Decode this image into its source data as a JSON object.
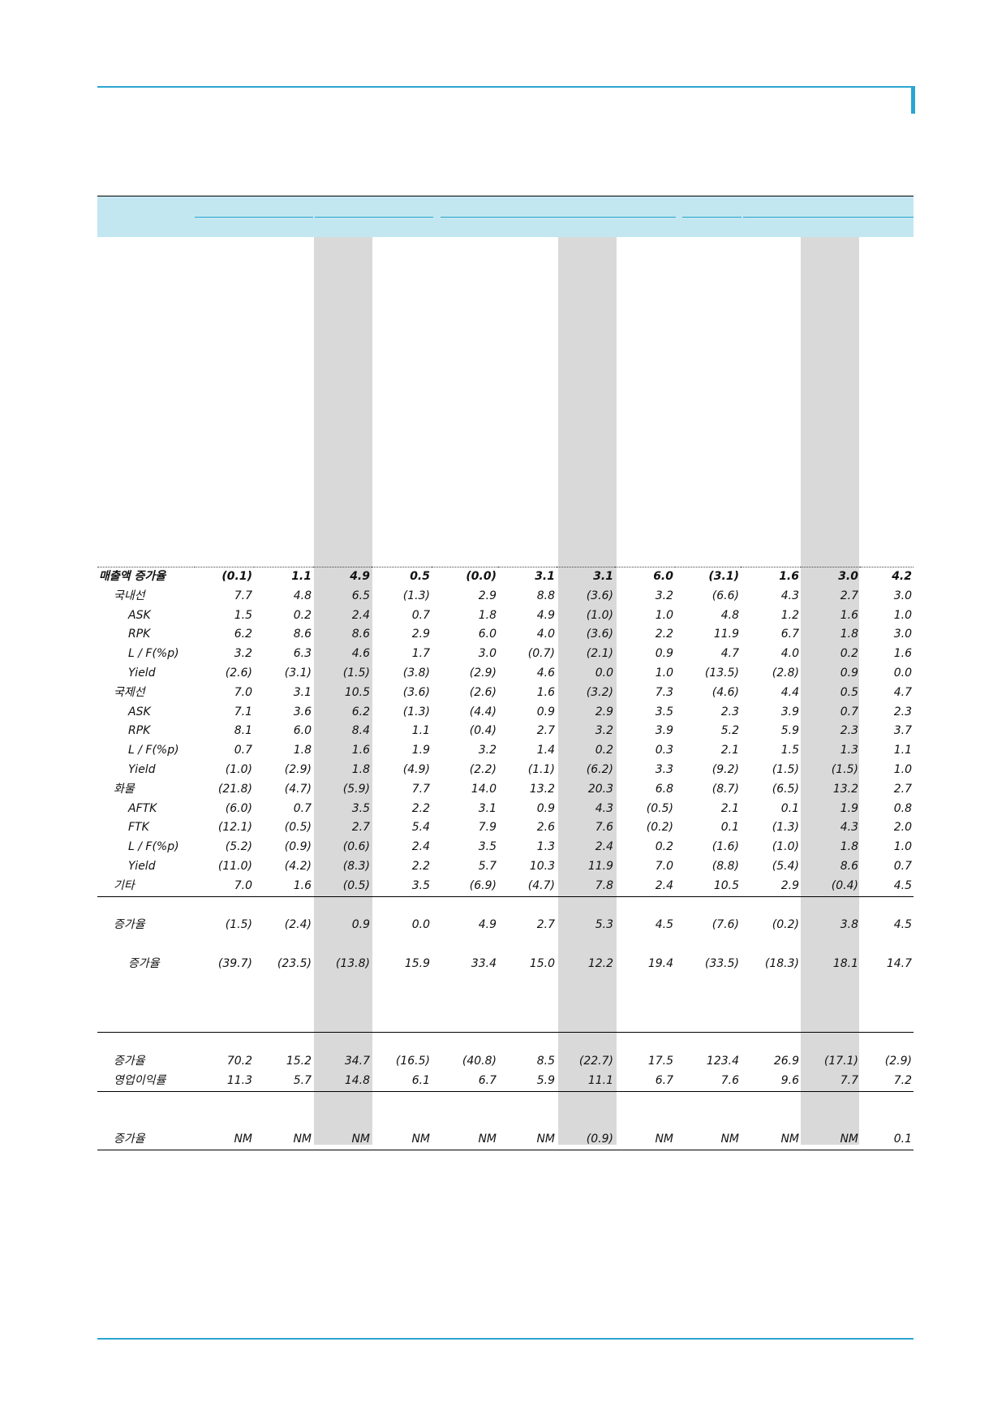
{
  "table": {
    "rows": [
      {
        "label": "매출액 증가율",
        "values": [
          "(0.1)",
          "1.1",
          "4.9",
          "0.5",
          "(0.0)",
          "3.1",
          "3.1",
          "6.0",
          "(3.1)",
          "1.6",
          "3.0",
          "4.2"
        ]
      },
      {
        "label": "국내선",
        "values": [
          "7.7",
          "4.8",
          "6.5",
          "(1.3)",
          "2.9",
          "8.8",
          "(3.6)",
          "3.2",
          "(6.6)",
          "4.3",
          "2.7",
          "3.0"
        ]
      },
      {
        "label": "ASK",
        "values": [
          "1.5",
          "0.2",
          "2.4",
          "0.7",
          "1.8",
          "4.9",
          "(1.0)",
          "1.0",
          "4.8",
          "1.2",
          "1.6",
          "1.0"
        ]
      },
      {
        "label": "RPK",
        "values": [
          "6.2",
          "8.6",
          "8.6",
          "2.9",
          "6.0",
          "4.0",
          "(3.6)",
          "2.2",
          "11.9",
          "6.7",
          "1.8",
          "3.0"
        ]
      },
      {
        "label": "L / F(%p)",
        "values": [
          "3.2",
          "6.3",
          "4.6",
          "1.7",
          "3.0",
          "(0.7)",
          "(2.1)",
          "0.9",
          "4.7",
          "4.0",
          "0.2",
          "1.6"
        ]
      },
      {
        "label": "Yield",
        "values": [
          "(2.6)",
          "(3.1)",
          "(1.5)",
          "(3.8)",
          "(2.9)",
          "4.6",
          "0.0",
          "1.0",
          "(13.5)",
          "(2.8)",
          "0.9",
          "0.0"
        ]
      },
      {
        "label": "국제선",
        "values": [
          "7.0",
          "3.1",
          "10.5",
          "(3.6)",
          "(2.6)",
          "1.6",
          "(3.2)",
          "7.3",
          "(4.6)",
          "4.4",
          "0.5",
          "4.7"
        ]
      },
      {
        "label": "ASK",
        "values": [
          "7.1",
          "3.6",
          "6.2",
          "(1.3)",
          "(4.4)",
          "0.9",
          "2.9",
          "3.5",
          "2.3",
          "3.9",
          "0.7",
          "2.3"
        ]
      },
      {
        "label": "RPK",
        "values": [
          "8.1",
          "6.0",
          "8.4",
          "1.1",
          "(0.4)",
          "2.7",
          "3.2",
          "3.9",
          "5.2",
          "5.9",
          "2.3",
          "3.7"
        ]
      },
      {
        "label": "L / F(%p)",
        "values": [
          "0.7",
          "1.8",
          "1.6",
          "1.9",
          "3.2",
          "1.4",
          "0.2",
          "0.3",
          "2.1",
          "1.5",
          "1.3",
          "1.1"
        ]
      },
      {
        "label": "Yield",
        "values": [
          "(1.0)",
          "(2.9)",
          "1.8",
          "(4.9)",
          "(2.2)",
          "(1.1)",
          "(6.2)",
          "3.3",
          "(9.2)",
          "(1.5)",
          "(1.5)",
          "1.0"
        ]
      },
      {
        "label": "화물",
        "values": [
          "(21.8)",
          "(4.7)",
          "(5.9)",
          "7.7",
          "14.0",
          "13.2",
          "20.3",
          "6.8",
          "(8.7)",
          "(6.5)",
          "13.2",
          "2.7"
        ]
      },
      {
        "label": "AFTK",
        "values": [
          "(6.0)",
          "0.7",
          "3.5",
          "2.2",
          "3.1",
          "0.9",
          "4.3",
          "(0.5)",
          "2.1",
          "0.1",
          "1.9",
          "0.8"
        ]
      },
      {
        "label": "FTK",
        "values": [
          "(12.1)",
          "(0.5)",
          "2.7",
          "5.4",
          "7.9",
          "2.6",
          "7.6",
          "(0.2)",
          "0.1",
          "(1.3)",
          "4.3",
          "2.0"
        ]
      },
      {
        "label": "L / F(%p)",
        "values": [
          "(5.2)",
          "(0.9)",
          "(0.6)",
          "2.4",
          "3.5",
          "1.3",
          "2.4",
          "0.2",
          "(1.6)",
          "(1.0)",
          "1.8",
          "1.0"
        ]
      },
      {
        "label": "Yield",
        "values": [
          "(11.0)",
          "(4.2)",
          "(8.3)",
          "2.2",
          "5.7",
          "10.3",
          "11.9",
          "7.0",
          "(8.8)",
          "(5.4)",
          "8.6",
          "0.7"
        ]
      },
      {
        "label": "기타",
        "values": [
          "7.0",
          "1.6",
          "(0.5)",
          "3.5",
          "(6.9)",
          "(4.7)",
          "7.8",
          "2.4",
          "10.5",
          "2.9",
          "(0.4)",
          "4.5"
        ]
      },
      {
        "label": "증가율",
        "values": [
          "(1.5)",
          "(2.4)",
          "0.9",
          "0.0",
          "4.9",
          "2.7",
          "5.3",
          "4.5",
          "(7.6)",
          "(0.2)",
          "3.8",
          "4.5"
        ]
      },
      {
        "label": "증가율",
        "values": [
          "(39.7)",
          "(23.5)",
          "(13.8)",
          "15.9",
          "33.4",
          "15.0",
          "12.2",
          "19.4",
          "(33.5)",
          "(18.3)",
          "18.1",
          "14.7"
        ]
      },
      {
        "label": "증가율",
        "values": [
          "70.2",
          "15.2",
          "34.7",
          "(16.5)",
          "(40.8)",
          "8.5",
          "(22.7)",
          "17.5",
          "123.4",
          "26.9",
          "(17.1)",
          "(2.9)"
        ]
      },
      {
        "label": "영업이익률",
        "values": [
          "11.3",
          "5.7",
          "14.8",
          "6.1",
          "6.7",
          "5.9",
          "11.1",
          "6.7",
          "7.6",
          "9.6",
          "7.7",
          "7.2"
        ]
      },
      {
        "label": "증가율",
        "values": [
          "NM",
          "NM",
          "NM",
          "NM",
          "NM",
          "NM",
          "(0.9)",
          "NM",
          "NM",
          "NM",
          "NM",
          "0.1"
        ]
      }
    ]
  }
}
